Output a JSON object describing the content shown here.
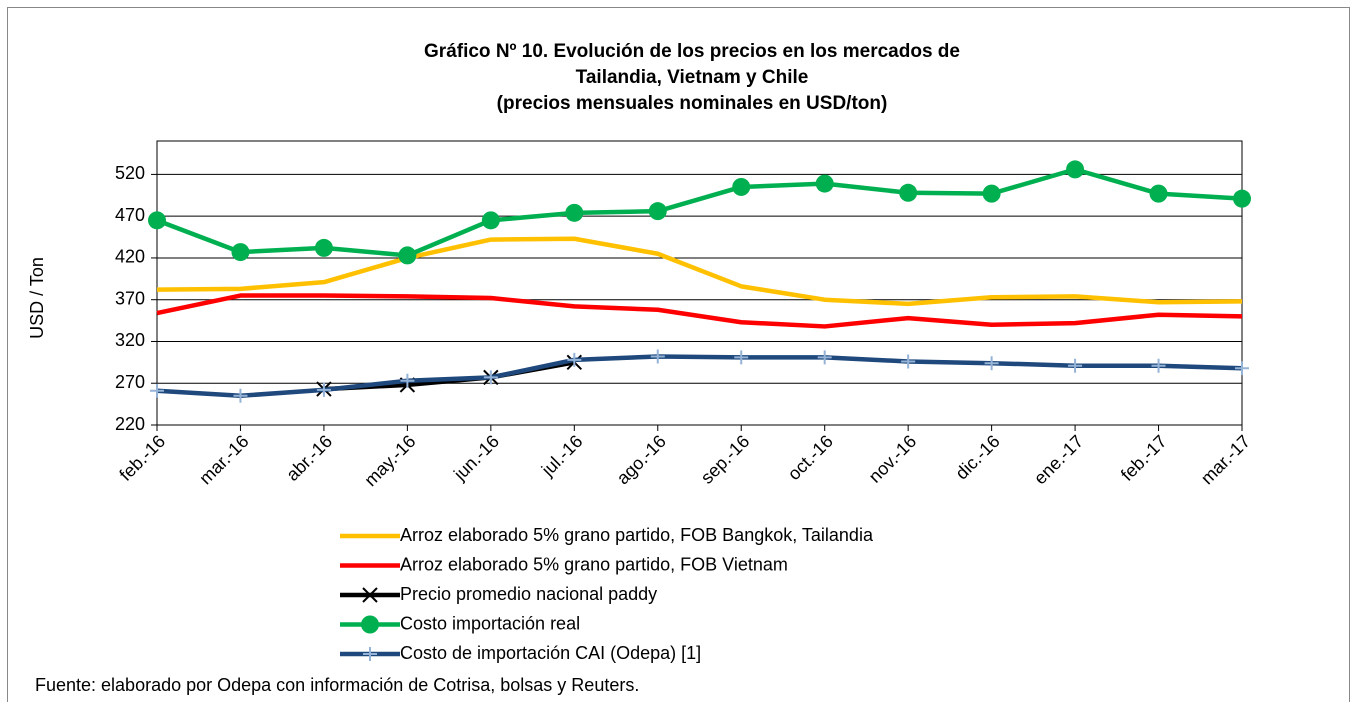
{
  "chart_data": {
    "type": "line",
    "title": [
      "Gráfico Nº 10. Evolución de los precios en los mercados de",
      "Tailandia, Vietnam y Chile",
      "(precios mensuales nominales en USD/ton)"
    ],
    "y_label": "USD / Ton",
    "categories": [
      "feb.-16",
      "mar.-16",
      "abr.-16",
      "may.-16",
      "jun.-16",
      "jul.-16",
      "ago.-16",
      "sep.-16",
      "oct.-16",
      "nov.-16",
      "dic.-16",
      "ene.-17",
      "feb.-17",
      "mar.-17"
    ],
    "series": [
      {
        "name": "Arroz elaborado 5% grano partido, FOB Bangkok, Tailandia",
        "color": "#FFC000",
        "marker": "none",
        "values": [
          382,
          383,
          391,
          420,
          442,
          443,
          425,
          386,
          370,
          365,
          373,
          374,
          367,
          368
        ]
      },
      {
        "name": "Arroz  elaborado 5% grano partido, FOB Vietnam",
        "color": "#FF0000",
        "marker": "none",
        "values": [
          354,
          375,
          375,
          374,
          372,
          362,
          358,
          343,
          338,
          348,
          340,
          342,
          352,
          350
        ]
      },
      {
        "name": "Precio promedio nacional paddy",
        "color": "#000000",
        "marker": "x",
        "values": [
          null,
          null,
          263,
          268,
          277,
          295,
          null,
          null,
          null,
          null,
          null,
          null,
          null,
          null
        ]
      },
      {
        "name": "Costo importación real",
        "color": "#00B050",
        "marker": "circle",
        "values": [
          465,
          427,
          432,
          423,
          465,
          474,
          476,
          505,
          509,
          498,
          497,
          526,
          497,
          491
        ]
      },
      {
        "name": "Costo de importación CAI (Odepa) [1]",
        "color": "#1F497D",
        "marker": "plus",
        "values": [
          261,
          255,
          262,
          273,
          277,
          298,
          302,
          301,
          301,
          296,
          294,
          291,
          291,
          288
        ]
      }
    ],
    "ylim": [
      220,
      560
    ],
    "yticks": [
      220,
      270,
      320,
      370,
      420,
      470,
      520
    ],
    "grid": true,
    "source": "Fuente: elaborado por Odepa con información de Cotrisa, bolsas y Reuters."
  }
}
